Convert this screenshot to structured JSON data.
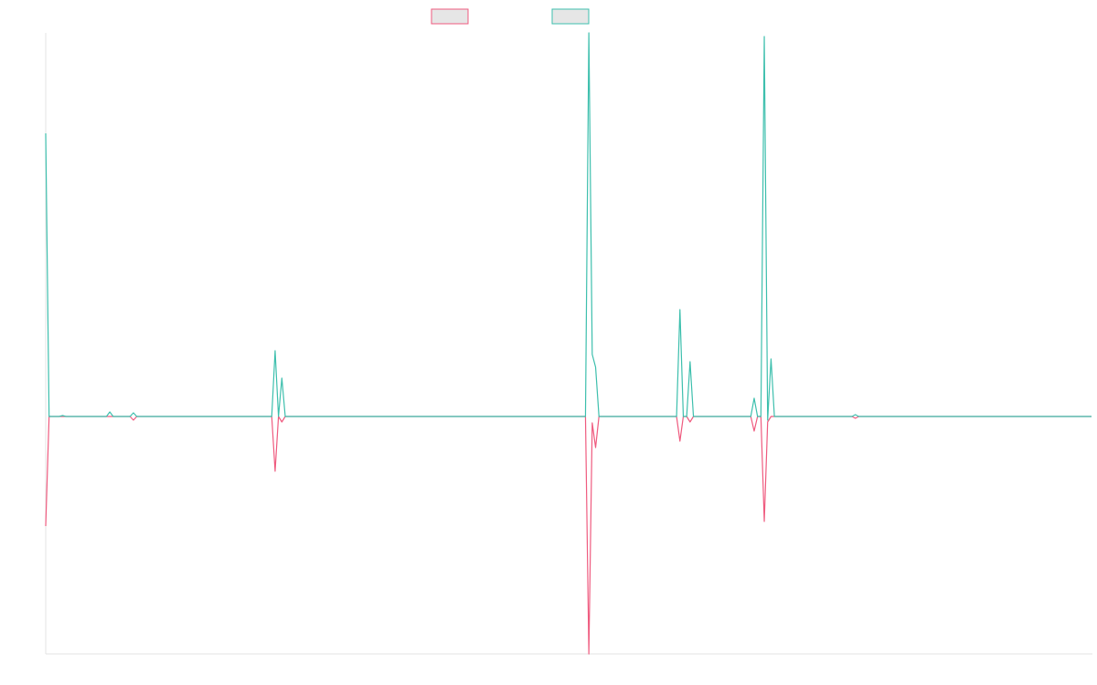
{
  "chart_data": {
    "type": "line",
    "x": [
      0,
      1,
      4,
      5,
      6,
      18,
      19,
      20,
      25,
      26,
      27,
      67,
      68,
      69,
      70,
      71,
      160,
      161,
      162,
      163,
      164,
      187,
      188,
      189,
      190,
      191,
      192,
      209,
      210,
      211,
      212,
      213,
      214,
      215,
      216,
      239,
      240,
      241,
      310
    ],
    "xlim": [
      0,
      310
    ],
    "ylim": [
      -1.3,
      2.1
    ],
    "series": [
      {
        "color": "#ef5b7f",
        "values": [
          -0.6,
          0,
          0,
          0,
          0,
          0,
          0,
          0,
          0,
          -0.02,
          0,
          0,
          -0.3,
          0,
          -0.03,
          0,
          0,
          -1.3,
          -0.035,
          -0.17,
          0,
          0,
          -0.135,
          0,
          0,
          -0.03,
          0,
          0,
          -0.08,
          0,
          0,
          -0.575,
          -0.03,
          0,
          0,
          0,
          -0.01,
          0,
          0
        ]
      },
      {
        "color": "#3dbfad",
        "values": [
          1.55,
          0,
          0,
          0.005,
          0,
          0,
          0.025,
          0,
          0,
          0.02,
          0,
          0,
          0.36,
          0,
          0.21,
          0,
          0,
          2.1,
          0.34,
          0.27,
          0,
          0,
          0.585,
          0,
          0,
          0.3,
          0,
          0,
          0.1,
          0,
          0,
          2.08,
          -0.02,
          0.315,
          0,
          0,
          0.01,
          0,
          0
        ]
      }
    ]
  }
}
